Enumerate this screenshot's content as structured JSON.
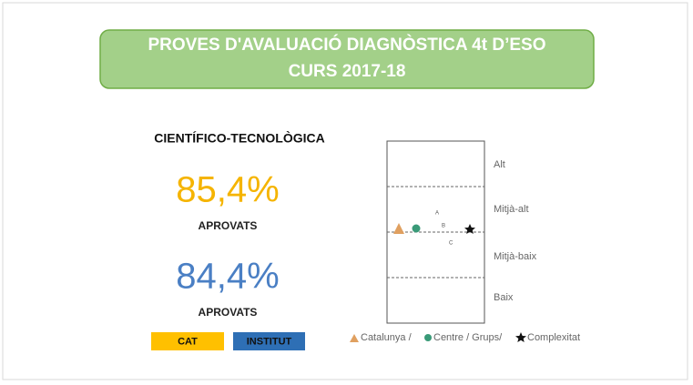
{
  "header": {
    "title_line1": "PROVES D'AVALUACIÓ DIAGNÒSTICA 4t D’ESO",
    "title_line2": "CURS 2017-18"
  },
  "summary": {
    "subject": "CIENTÍFICO-TECNOLÒGICA",
    "results": [
      {
        "value": "85,4%",
        "label": "APROVATS"
      },
      {
        "value": "84,4%",
        "label": "APROVATS"
      }
    ],
    "legend": [
      "CAT",
      "INSTITUT"
    ]
  },
  "diagram": {
    "levels": [
      "Alt",
      "Mitjà-alt",
      "Mitjà-baix",
      "Baix"
    ],
    "group_labels": [
      "A",
      "B",
      "C"
    ],
    "legend": [
      "Catalunya / ",
      "Centre / Grups/",
      "Complexitat"
    ]
  }
}
